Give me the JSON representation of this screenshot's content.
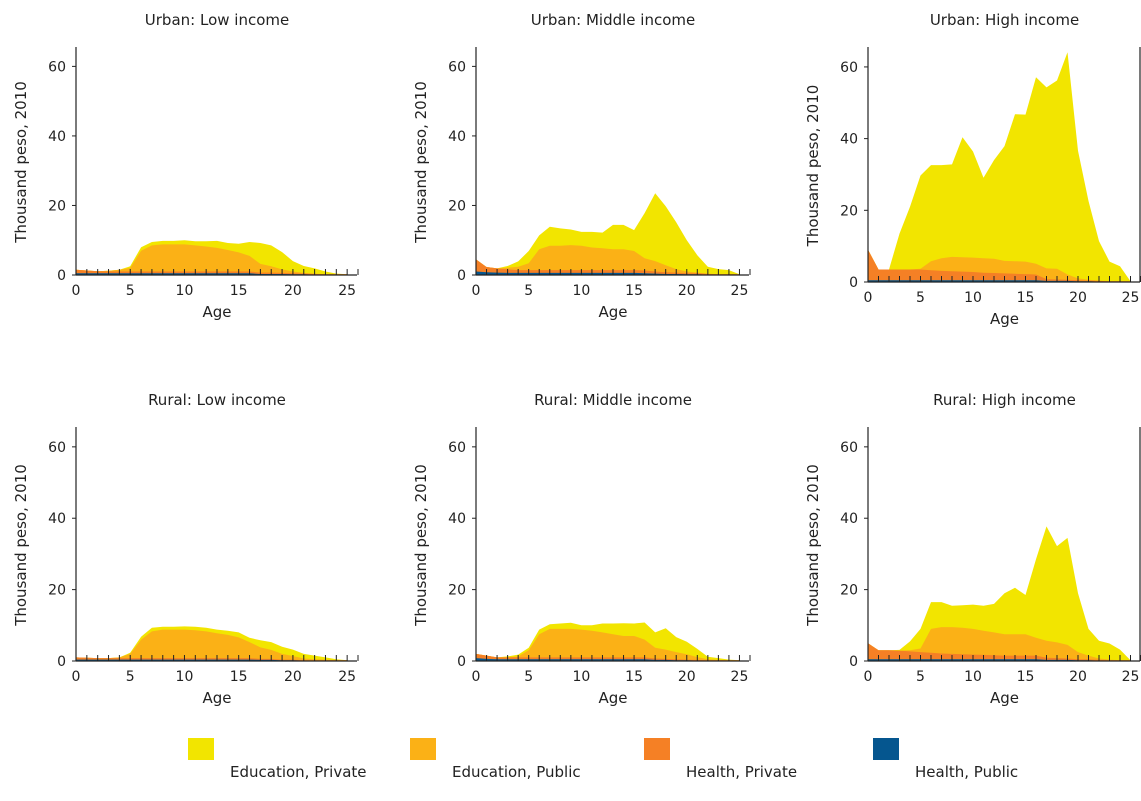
{
  "chart_data": [
    {
      "type": "area",
      "title": "Urban: Low income",
      "xlabel": "Age",
      "ylabel": "Thousand peso, 2010",
      "xlim": [
        0,
        26
      ],
      "ylim": [
        0,
        65
      ],
      "xticks": [
        0,
        5,
        10,
        15,
        20,
        25
      ],
      "yticks": [
        0,
        20,
        40,
        60
      ],
      "stacked": true,
      "x": [
        0,
        1,
        2,
        3,
        4,
        5,
        6,
        7,
        8,
        9,
        10,
        11,
        12,
        13,
        14,
        15,
        16,
        17,
        18,
        19,
        20,
        21,
        22,
        23,
        24,
        25
      ],
      "series": [
        {
          "name": "Health, Public",
          "values": [
            0.5,
            0.5,
            0.5,
            0.5,
            0.5,
            0.5,
            0.5,
            0.5,
            0.5,
            0.5,
            0.5,
            0.5,
            0.5,
            0.5,
            0.5,
            0.5,
            0.5,
            0.3,
            0.3,
            0.3,
            0.2,
            0.2,
            0.1,
            0.1,
            0.1,
            0.1
          ]
        },
        {
          "name": "Health, Private",
          "values": [
            1.0,
            0.8,
            0.6,
            0.5,
            0.5,
            0.5,
            0.5,
            0.5,
            0.5,
            0.5,
            0.5,
            0.5,
            0.5,
            0.5,
            0.5,
            0.5,
            0.5,
            0.4,
            0.4,
            0.3,
            0.3,
            0.2,
            0.2,
            0.1,
            0.1,
            0.1
          ]
        },
        {
          "name": "Education, Public",
          "values": [
            0,
            0,
            0,
            0.2,
            0.5,
            1.0,
            6.0,
            7.5,
            7.8,
            7.8,
            7.8,
            7.5,
            7.2,
            6.8,
            6.2,
            5.5,
            4.5,
            2.5,
            1.8,
            1.0,
            0.5,
            0.2,
            0.1,
            0,
            0,
            0
          ]
        },
        {
          "name": "Education, Private",
          "values": [
            0,
            0,
            0,
            0,
            0,
            0.5,
            1.0,
            1.0,
            1.0,
            1.0,
            1.2,
            1.2,
            1.5,
            2.0,
            2.0,
            2.5,
            4.0,
            6.0,
            6.0,
            5.0,
            3.0,
            2.0,
            1.5,
            0.8,
            0.2,
            0
          ]
        }
      ]
    },
    {
      "type": "area",
      "title": "Urban: Middle income",
      "xlabel": "Age",
      "ylabel": "Thousand peso, 2010",
      "xlim": [
        0,
        26
      ],
      "ylim": [
        0,
        65
      ],
      "xticks": [
        0,
        5,
        10,
        15,
        20,
        25
      ],
      "yticks": [
        0,
        20,
        40,
        60
      ],
      "stacked": true,
      "x": [
        0,
        1,
        2,
        3,
        4,
        5,
        6,
        7,
        8,
        9,
        10,
        11,
        12,
        13,
        14,
        15,
        16,
        17,
        18,
        19,
        20,
        21,
        22,
        23,
        24,
        25
      ],
      "series": [
        {
          "name": "Health, Public",
          "values": [
            1.0,
            0.8,
            0.7,
            0.6,
            0.6,
            0.6,
            0.6,
            0.6,
            0.6,
            0.6,
            0.6,
            0.6,
            0.6,
            0.6,
            0.6,
            0.6,
            0.5,
            0.4,
            0.3,
            0.3,
            0.2,
            0.2,
            0.1,
            0.1,
            0.1,
            0.1
          ]
        },
        {
          "name": "Health, Private",
          "values": [
            3.5,
            1.5,
            1.2,
            1.0,
            0.8,
            0.8,
            0.8,
            0.8,
            0.8,
            0.8,
            0.8,
            0.8,
            0.8,
            0.8,
            0.8,
            0.8,
            0.8,
            0.6,
            0.5,
            0.4,
            0.3,
            0.3,
            0.2,
            0.1,
            0.1,
            0.1
          ]
        },
        {
          "name": "Education, Public",
          "values": [
            0,
            0,
            0,
            0.5,
            1.0,
            2.0,
            6.0,
            7.0,
            7.0,
            7.2,
            7.0,
            6.5,
            6.3,
            6.0,
            6.0,
            5.5,
            3.5,
            3.0,
            2.0,
            1.0,
            0.5,
            0.2,
            0.1,
            0,
            0,
            0
          ]
        },
        {
          "name": "Education, Private",
          "values": [
            0,
            0,
            0,
            0.5,
            1.5,
            3.5,
            4.0,
            5.5,
            5.0,
            4.5,
            4.0,
            4.5,
            4.5,
            7.0,
            7.0,
            6.0,
            13.0,
            19.5,
            17.0,
            13.5,
            9.0,
            5.0,
            2.0,
            1.5,
            1.2,
            0
          ]
        }
      ]
    },
    {
      "type": "area",
      "title": "Urban: High income",
      "xlabel": "Age",
      "ylabel": "Thousand peso, 2010",
      "xlim": [
        0,
        26
      ],
      "ylim": [
        0,
        65
      ],
      "xticks": [
        0,
        5,
        10,
        15,
        20,
        25
      ],
      "yticks": [
        0,
        20,
        40,
        60
      ],
      "stacked": true,
      "x": [
        0,
        1,
        2,
        3,
        4,
        5,
        6,
        7,
        8,
        9,
        10,
        11,
        12,
        13,
        14,
        15,
        16,
        17,
        18,
        19,
        20,
        21,
        22,
        23,
        24,
        25
      ],
      "series": [
        {
          "name": "Health, Public",
          "values": [
            0.5,
            0.5,
            0.5,
            0.5,
            0.5,
            0.5,
            0.5,
            0.5,
            0.5,
            0.5,
            0.5,
            0.5,
            0.5,
            0.5,
            0.5,
            0.5,
            0.5,
            0.3,
            0.3,
            0.3,
            0.2,
            0.2,
            0.1,
            0.1,
            0.1,
            0.1
          ]
        },
        {
          "name": "Health, Private",
          "values": [
            8.5,
            3.0,
            3.0,
            3.0,
            3.0,
            3.0,
            2.8,
            2.6,
            2.5,
            2.4,
            2.3,
            2.1,
            2.0,
            1.9,
            1.8,
            1.7,
            1.6,
            0.5,
            0.4,
            0.3,
            0.3,
            0.2,
            0.2,
            0.1,
            0.1,
            0.1
          ]
        },
        {
          "name": "Education, Public",
          "values": [
            0,
            0,
            0,
            0,
            0,
            0.2,
            2.5,
            3.5,
            4.0,
            4.0,
            4.0,
            4.0,
            4.0,
            3.5,
            3.5,
            3.5,
            3.0,
            3.0,
            3.0,
            1.5,
            0.5,
            0.2,
            0.1,
            0,
            0,
            0
          ]
        },
        {
          "name": "Education, Private",
          "values": [
            0,
            0,
            0,
            10.0,
            17.5,
            26.0,
            26.8,
            26.0,
            25.8,
            33.5,
            29.6,
            22.5,
            27.5,
            32.0,
            41.0,
            41.0,
            52.0,
            50.5,
            52.5,
            62.0,
            35.6,
            22.0,
            11.0,
            5.5,
            4.2,
            0
          ]
        }
      ]
    },
    {
      "type": "area",
      "title": "Rural: Low income",
      "xlabel": "Age",
      "ylabel": "Thousand peso, 2010",
      "xlim": [
        0,
        26
      ],
      "ylim": [
        0,
        65
      ],
      "xticks": [
        0,
        5,
        10,
        15,
        20,
        25
      ],
      "yticks": [
        0,
        20,
        40,
        60
      ],
      "stacked": true,
      "x": [
        0,
        1,
        2,
        3,
        4,
        5,
        6,
        7,
        8,
        9,
        10,
        11,
        12,
        13,
        14,
        15,
        16,
        17,
        18,
        19,
        20,
        21,
        22,
        23,
        24,
        25
      ],
      "series": [
        {
          "name": "Health, Public",
          "values": [
            0.4,
            0.4,
            0.4,
            0.4,
            0.4,
            0.4,
            0.4,
            0.4,
            0.4,
            0.4,
            0.4,
            0.4,
            0.4,
            0.4,
            0.4,
            0.4,
            0.4,
            0.3,
            0.3,
            0.2,
            0.2,
            0.1,
            0.1,
            0.1,
            0.1,
            0.1
          ]
        },
        {
          "name": "Health, Private",
          "values": [
            0.6,
            0.5,
            0.4,
            0.4,
            0.4,
            0.4,
            0.4,
            0.4,
            0.4,
            0.4,
            0.4,
            0.4,
            0.4,
            0.4,
            0.4,
            0.4,
            0.4,
            0.3,
            0.3,
            0.2,
            0.2,
            0.1,
            0.1,
            0.1,
            0.1,
            0.1
          ]
        },
        {
          "name": "Education, Public",
          "values": [
            0,
            0,
            0,
            0,
            0.2,
            1.2,
            5.2,
            7.5,
            8.0,
            8.0,
            8.0,
            7.8,
            7.5,
            7.0,
            6.5,
            5.8,
            4.5,
            3.2,
            2.5,
            1.6,
            1.0,
            0.5,
            0.3,
            0.2,
            0,
            0
          ]
        },
        {
          "name": "Education, Private",
          "values": [
            0,
            0,
            0,
            0,
            0,
            0.3,
            0.8,
            1.0,
            0.8,
            0.8,
            0.9,
            1.0,
            1.0,
            1.0,
            1.2,
            1.4,
            1.2,
            2.0,
            2.2,
            2.0,
            1.8,
            1.3,
            1.0,
            0.6,
            0.3,
            0
          ]
        }
      ]
    },
    {
      "type": "area",
      "title": "Rural: Middle income",
      "xlabel": "Age",
      "ylabel": "Thousand peso, 2010",
      "xlim": [
        0,
        26
      ],
      "ylim": [
        0,
        65
      ],
      "xticks": [
        0,
        5,
        10,
        15,
        20,
        25
      ],
      "yticks": [
        0,
        20,
        40,
        60
      ],
      "stacked": true,
      "x": [
        0,
        1,
        2,
        3,
        4,
        5,
        6,
        7,
        8,
        9,
        10,
        11,
        12,
        13,
        14,
        15,
        16,
        17,
        18,
        19,
        20,
        21,
        22,
        23,
        24,
        25
      ],
      "series": [
        {
          "name": "Health, Public",
          "values": [
            0.8,
            0.6,
            0.5,
            0.5,
            0.5,
            0.5,
            0.5,
            0.5,
            0.5,
            0.5,
            0.5,
            0.5,
            0.5,
            0.5,
            0.5,
            0.5,
            0.5,
            0.3,
            0.3,
            0.2,
            0.2,
            0.1,
            0.1,
            0.1,
            0.1,
            0.1
          ]
        },
        {
          "name": "Health, Private",
          "values": [
            1.2,
            0.9,
            0.5,
            0.5,
            0.5,
            0.5,
            0.5,
            0.5,
            0.5,
            0.5,
            0.5,
            0.5,
            0.5,
            0.5,
            0.5,
            0.5,
            0.5,
            0.4,
            0.3,
            0.3,
            0.2,
            0.2,
            0.1,
            0.1,
            0.1,
            0.1
          ]
        },
        {
          "name": "Education, Public",
          "values": [
            0,
            0,
            0,
            0,
            0.3,
            2.0,
            6.5,
            8.0,
            8.0,
            8.0,
            7.8,
            7.5,
            7.0,
            6.5,
            6.0,
            6.0,
            5.0,
            3.0,
            2.6,
            2.0,
            1.5,
            0.8,
            0.3,
            0.1,
            0,
            0
          ]
        },
        {
          "name": "Education, Private",
          "values": [
            0,
            0,
            0,
            0.3,
            0.5,
            0.7,
            1.3,
            1.3,
            1.5,
            1.7,
            1.2,
            1.5,
            2.5,
            3.0,
            3.6,
            3.5,
            4.8,
            4.3,
            6.0,
            4.2,
            3.5,
            2.3,
            0.7,
            0.5,
            0.2,
            0
          ]
        }
      ]
    },
    {
      "type": "area",
      "title": "Rural: High income",
      "xlabel": "Age",
      "ylabel": "Thousand peso, 2010",
      "xlim": [
        0,
        26
      ],
      "ylim": [
        0,
        65
      ],
      "xticks": [
        0,
        5,
        10,
        15,
        20,
        25
      ],
      "yticks": [
        0,
        20,
        40,
        60
      ],
      "stacked": true,
      "x": [
        0,
        1,
        2,
        3,
        4,
        5,
        6,
        7,
        8,
        9,
        10,
        11,
        12,
        13,
        14,
        15,
        16,
        17,
        18,
        19,
        20,
        21,
        22,
        23,
        24,
        25
      ],
      "series": [
        {
          "name": "Health, Public",
          "values": [
            0.5,
            0.5,
            0.5,
            0.5,
            0.5,
            0.5,
            0.5,
            0.5,
            0.5,
            0.5,
            0.5,
            0.5,
            0.5,
            0.5,
            0.5,
            0.5,
            0.5,
            0.3,
            0.3,
            0.3,
            0.2,
            0.2,
            0.1,
            0.1,
            0.1,
            0.1
          ]
        },
        {
          "name": "Health, Private",
          "values": [
            4.5,
            2.5,
            2.5,
            2.4,
            2.2,
            2.0,
            1.8,
            1.6,
            1.5,
            1.4,
            1.3,
            1.2,
            1.1,
            1.0,
            1.0,
            1.0,
            1.0,
            0.6,
            0.5,
            0.4,
            0.3,
            0.3,
            0.2,
            0.1,
            0.1,
            0.1
          ]
        },
        {
          "name": "Education, Public",
          "values": [
            0,
            0,
            0,
            0,
            0.3,
            1.0,
            6.7,
            7.4,
            7.5,
            7.4,
            7.2,
            6.8,
            6.4,
            6.0,
            6.0,
            6.0,
            5.0,
            4.8,
            4.4,
            3.8,
            2.0,
            1.0,
            0.4,
            0.2,
            0,
            0
          ]
        },
        {
          "name": "Education, Private",
          "values": [
            0,
            0,
            0,
            0.2,
            2.5,
            5.5,
            7.5,
            7.0,
            6.0,
            6.3,
            6.8,
            7.0,
            8.0,
            11.5,
            13.0,
            11.0,
            22.0,
            32.0,
            27.0,
            30.0,
            16.5,
            7.5,
            5.0,
            4.5,
            3.0,
            0
          ]
        }
      ]
    }
  ],
  "legend": {
    "position": "bottom",
    "items": [
      {
        "label": "Education, Private",
        "color": "#f2e500"
      },
      {
        "label": "Education, Public",
        "color": "#fbb116"
      },
      {
        "label": "Health, Private",
        "color": "#f58025"
      },
      {
        "label": "Health, Public",
        "color": "#05568f"
      }
    ]
  },
  "colors": {
    "Health, Public": "#05568f",
    "Health, Private": "#f58025",
    "Education, Public": "#fbb116",
    "Education, Private": "#f2e500",
    "axis": "#222222"
  }
}
